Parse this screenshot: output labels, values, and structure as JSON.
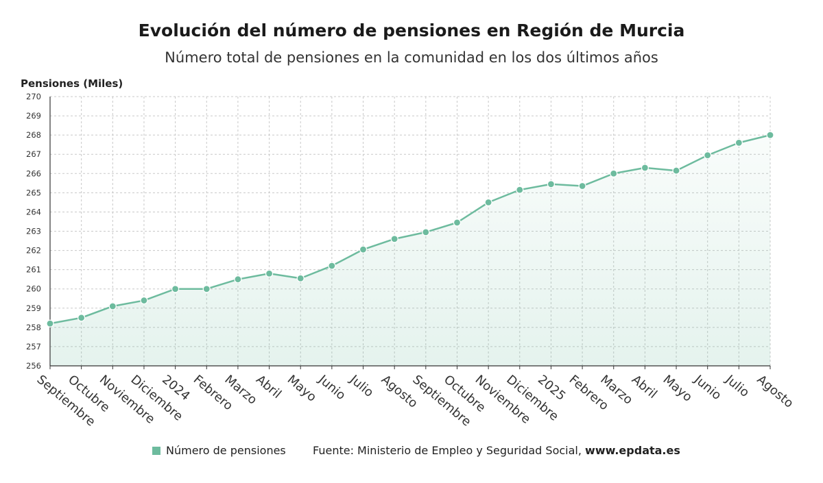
{
  "chart_data": {
    "type": "area",
    "title": "Evolución del número de pensiones en Región de Murcia",
    "subtitle": "Número total de pensiones en la comunidad en los dos últimos años",
    "ylabel": "Pensiones (Miles)",
    "xlabel": "",
    "ylim": [
      256,
      270
    ],
    "yticks": [
      256,
      257,
      258,
      259,
      260,
      261,
      262,
      263,
      264,
      265,
      266,
      267,
      268,
      269,
      270
    ],
    "grid": true,
    "categories": [
      "Septiembre",
      "Octubre",
      "Noviembre",
      "Diciembre",
      "2024",
      "Febrero",
      "Marzo",
      "Abril",
      "Mayo",
      "Junio",
      "Julio",
      "Agosto",
      "Septiembre",
      "Octubre",
      "Noviembre",
      "Diciembre",
      "2025",
      "Febrero",
      "Marzo",
      "Abril",
      "Mayo",
      "Junio",
      "Julio",
      "Agosto"
    ],
    "series": [
      {
        "name": "Número de pensiones",
        "color": "#6dbb9e",
        "values": [
          258.2,
          258.5,
          259.1,
          259.4,
          260.0,
          260.0,
          260.5,
          260.8,
          260.55,
          261.2,
          262.05,
          262.6,
          262.95,
          263.45,
          264.5,
          265.15,
          265.45,
          265.35,
          266.0,
          266.3,
          266.15,
          266.95,
          267.6,
          268.0
        ]
      }
    ],
    "legend_position": "bottom"
  },
  "footer": {
    "legend_label": "Número de pensiones",
    "source_text": "Fuente: Ministerio de Empleo y Seguridad Social, ",
    "source_site": "www.epdata.es"
  }
}
